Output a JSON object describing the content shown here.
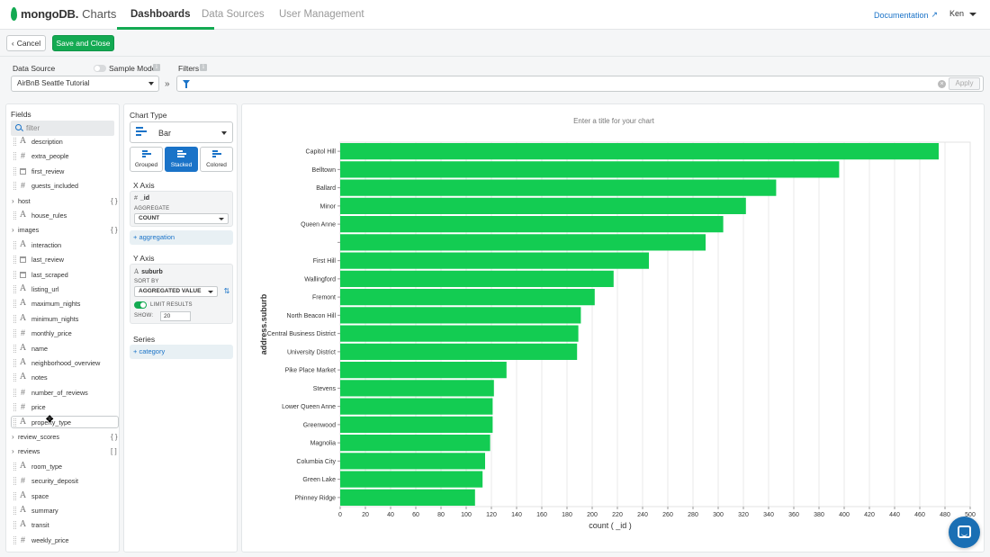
{
  "brand": {
    "name": "mongoDB.",
    "product": "Charts"
  },
  "nav": {
    "tabs": [
      {
        "label": "Dashboards"
      },
      {
        "label": "Data Sources"
      },
      {
        "label": "User Management"
      }
    ],
    "doc_link": "Documentation",
    "user": "Ken"
  },
  "toolbar": {
    "cancel_label": "Cancel",
    "save_label": "Save and Close"
  },
  "data_source": {
    "label": "Data Source",
    "sample_mode_label": "Sample Mode",
    "selected": "AirBnB Seattle Tutorial",
    "filters_label": "Filters",
    "apply_label": "Apply"
  },
  "fields": {
    "title": "Fields",
    "search_placeholder": "filter",
    "items": [
      {
        "name": "description",
        "type": "string"
      },
      {
        "name": "extra_people",
        "type": "number"
      },
      {
        "name": "first_review",
        "type": "date"
      },
      {
        "name": "guests_included",
        "type": "number"
      },
      {
        "name": "host",
        "type": "object"
      },
      {
        "name": "house_rules",
        "type": "string"
      },
      {
        "name": "images",
        "type": "object"
      },
      {
        "name": "interaction",
        "type": "string"
      },
      {
        "name": "last_review",
        "type": "date"
      },
      {
        "name": "last_scraped",
        "type": "date"
      },
      {
        "name": "listing_url",
        "type": "string"
      },
      {
        "name": "maximum_nights",
        "type": "string"
      },
      {
        "name": "minimum_nights",
        "type": "string"
      },
      {
        "name": "monthly_price",
        "type": "number"
      },
      {
        "name": "name",
        "type": "string"
      },
      {
        "name": "neighborhood_overview",
        "type": "string"
      },
      {
        "name": "notes",
        "type": "string"
      },
      {
        "name": "number_of_reviews",
        "type": "number"
      },
      {
        "name": "price",
        "type": "number"
      },
      {
        "name": "property_type",
        "type": "string"
      },
      {
        "name": "review_scores",
        "type": "object"
      },
      {
        "name": "reviews",
        "type": "array"
      },
      {
        "name": "room_type",
        "type": "string"
      },
      {
        "name": "security_deposit",
        "type": "number"
      },
      {
        "name": "space",
        "type": "string"
      },
      {
        "name": "summary",
        "type": "string"
      },
      {
        "name": "transit",
        "type": "string"
      },
      {
        "name": "weekly_price",
        "type": "number"
      }
    ],
    "object_brace": "{ }",
    "array_brace": "[ ]",
    "string_glyph": "A",
    "number_glyph": "#",
    "cursor_glyph": "✥"
  },
  "encoding": {
    "chart_type_label": "Chart Type",
    "chart_type": "Bar",
    "variants": [
      "Grouped",
      "Stacked",
      "Colored"
    ],
    "active_variant": "Stacked",
    "x_axis": {
      "label": "X Axis",
      "field": "_id",
      "aggregate_label": "AGGREGATE",
      "aggregate": "COUNT",
      "add_label": "+ aggregation"
    },
    "y_axis": {
      "label": "Y Axis",
      "field": "suburb",
      "sort_label": "SORT BY",
      "sort": "AGGREGATED VALUE",
      "limit_label": "LIMIT RESULTS",
      "show_label": "SHOW:",
      "show_value": "20"
    },
    "series": {
      "label": "Series",
      "add_label": "+ category"
    }
  },
  "chart_placeholder_title": "Enter a title for your chart",
  "chart_data": {
    "type": "bar",
    "orientation": "horizontal",
    "categories": [
      "Capitol Hill",
      "Belltown",
      "Ballard",
      "Minor",
      "Queen Anne",
      "",
      "First Hill",
      "Wallingford",
      "Fremont",
      "North Beacon Hill",
      "Central Business District",
      "University District",
      "Pike Place Market",
      "Stevens",
      "Lower Queen Anne",
      "Greenwood",
      "Magnolia",
      "Columbia City",
      "Green Lake",
      "Phinney Ridge"
    ],
    "values": [
      475,
      396,
      346,
      322,
      304,
      290,
      245,
      217,
      202,
      191,
      189,
      188,
      132,
      122,
      121,
      121,
      119,
      115,
      113,
      107
    ],
    "xlabel": "count ( _id )",
    "ylabel": "address.suburb",
    "xlim": [
      0,
      500
    ],
    "xticks": [
      0,
      20,
      40,
      60,
      80,
      100,
      120,
      140,
      160,
      180,
      200,
      220,
      240,
      260,
      280,
      300,
      320,
      340,
      360,
      380,
      400,
      420,
      440,
      460,
      480,
      500
    ],
    "bar_color": "#13cc52",
    "grid": true
  },
  "colors": {
    "accent": "#13aa52",
    "link": "#1a73c8"
  }
}
